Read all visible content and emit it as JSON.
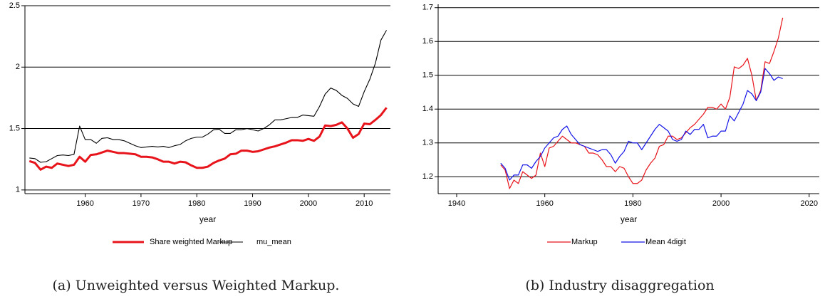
{
  "chart_data": [
    {
      "type": "line",
      "caption": "(a) Unweighted versus Weighted Markup.",
      "xlabel": "year",
      "x": [
        1950,
        1951,
        1952,
        1953,
        1954,
        1955,
        1956,
        1957,
        1958,
        1959,
        1960,
        1961,
        1962,
        1963,
        1964,
        1965,
        1966,
        1967,
        1968,
        1969,
        1970,
        1971,
        1972,
        1973,
        1974,
        1975,
        1976,
        1977,
        1978,
        1979,
        1980,
        1981,
        1982,
        1983,
        1984,
        1985,
        1986,
        1987,
        1988,
        1989,
        1990,
        1991,
        1992,
        1993,
        1994,
        1995,
        1996,
        1997,
        1998,
        1999,
        2000,
        2001,
        2002,
        2003,
        2004,
        2005,
        2006,
        2007,
        2008,
        2009,
        2010,
        2011,
        2012,
        2013,
        2014
      ],
      "series": [
        {
          "name": "Share weighted Markup",
          "color": "#e8141b",
          "values": [
            1.235,
            1.22,
            1.165,
            1.19,
            1.18,
            1.215,
            1.205,
            1.195,
            1.205,
            1.27,
            1.23,
            1.285,
            1.29,
            1.305,
            1.32,
            1.31,
            1.3,
            1.3,
            1.295,
            1.29,
            1.27,
            1.27,
            1.265,
            1.25,
            1.23,
            1.23,
            1.215,
            1.23,
            1.225,
            1.2,
            1.18,
            1.18,
            1.19,
            1.22,
            1.24,
            1.255,
            1.29,
            1.295,
            1.32,
            1.32,
            1.31,
            1.315,
            1.33,
            1.345,
            1.355,
            1.37,
            1.385,
            1.405,
            1.405,
            1.4,
            1.415,
            1.4,
            1.435,
            1.525,
            1.52,
            1.53,
            1.55,
            1.5,
            1.425,
            1.455,
            1.54,
            1.535,
            1.57,
            1.61,
            1.67
          ]
        },
        {
          "name": "mu_mean",
          "color": "#000000",
          "values": [
            1.26,
            1.255,
            1.225,
            1.23,
            1.255,
            1.28,
            1.285,
            1.28,
            1.29,
            1.52,
            1.41,
            1.41,
            1.38,
            1.42,
            1.425,
            1.41,
            1.41,
            1.4,
            1.38,
            1.36,
            1.345,
            1.35,
            1.355,
            1.35,
            1.355,
            1.345,
            1.36,
            1.37,
            1.4,
            1.42,
            1.43,
            1.43,
            1.455,
            1.49,
            1.495,
            1.46,
            1.46,
            1.49,
            1.49,
            1.5,
            1.49,
            1.48,
            1.5,
            1.53,
            1.57,
            1.57,
            1.58,
            1.59,
            1.59,
            1.61,
            1.605,
            1.6,
            1.68,
            1.78,
            1.83,
            1.81,
            1.77,
            1.745,
            1.7,
            1.68,
            1.8,
            1.9,
            2.03,
            2.22,
            2.3
          ]
        }
      ],
      "xlim": [
        1949.2,
        2014.7
      ],
      "ylim": [
        0.97,
        2.5
      ],
      "xticks": [
        1960,
        1970,
        1980,
        1990,
        2000,
        2010
      ],
      "yticks": [
        1,
        1.5,
        2,
        2.5
      ],
      "grid": true
    },
    {
      "type": "line",
      "caption": "(b) Industry disaggregation",
      "xlabel": "year",
      "x": [
        1950,
        1951,
        1952,
        1953,
        1954,
        1955,
        1956,
        1957,
        1958,
        1959,
        1960,
        1961,
        1962,
        1963,
        1964,
        1965,
        1966,
        1967,
        1968,
        1969,
        1970,
        1971,
        1972,
        1973,
        1974,
        1975,
        1976,
        1977,
        1978,
        1979,
        1980,
        1981,
        1982,
        1983,
        1984,
        1985,
        1986,
        1987,
        1988,
        1989,
        1990,
        1991,
        1992,
        1993,
        1994,
        1995,
        1996,
        1997,
        1998,
        1999,
        2000,
        2001,
        2002,
        2003,
        2004,
        2005,
        2006,
        2007,
        2008,
        2009,
        2010,
        2011,
        2012,
        2013,
        2014
      ],
      "series": [
        {
          "name": "Markup",
          "color": "#e8141b",
          "values": [
            1.235,
            1.22,
            1.165,
            1.19,
            1.18,
            1.215,
            1.205,
            1.195,
            1.205,
            1.27,
            1.23,
            1.285,
            1.29,
            1.305,
            1.32,
            1.31,
            1.3,
            1.3,
            1.295,
            1.29,
            1.27,
            1.27,
            1.265,
            1.25,
            1.23,
            1.23,
            1.215,
            1.23,
            1.225,
            1.2,
            1.18,
            1.18,
            1.19,
            1.22,
            1.24,
            1.255,
            1.29,
            1.295,
            1.32,
            1.32,
            1.31,
            1.315,
            1.33,
            1.345,
            1.355,
            1.37,
            1.385,
            1.405,
            1.405,
            1.4,
            1.415,
            1.4,
            1.435,
            1.525,
            1.52,
            1.53,
            1.55,
            1.5,
            1.425,
            1.455,
            1.54,
            1.535,
            1.57,
            1.61,
            1.67
          ]
        },
        {
          "name": "Mean 4digit",
          "color": "#1414e8",
          "values": [
            1.24,
            1.225,
            1.19,
            1.205,
            1.205,
            1.235,
            1.235,
            1.225,
            1.245,
            1.26,
            1.285,
            1.3,
            1.315,
            1.32,
            1.34,
            1.35,
            1.325,
            1.31,
            1.295,
            1.29,
            1.285,
            1.28,
            1.275,
            1.28,
            1.28,
            1.265,
            1.24,
            1.26,
            1.275,
            1.305,
            1.3,
            1.3,
            1.28,
            1.3,
            1.32,
            1.34,
            1.355,
            1.345,
            1.335,
            1.31,
            1.305,
            1.31,
            1.335,
            1.325,
            1.34,
            1.34,
            1.355,
            1.315,
            1.32,
            1.32,
            1.335,
            1.335,
            1.38,
            1.365,
            1.39,
            1.415,
            1.455,
            1.445,
            1.425,
            1.45,
            1.52,
            1.505,
            1.485,
            1.495,
            1.49
          ]
        }
      ],
      "xlim": [
        1935.8,
        2022.3
      ],
      "ylim": [
        1.15,
        1.71
      ],
      "xticks": [
        1940,
        1960,
        1980,
        2000,
        2020
      ],
      "yticks": [
        1.2,
        1.3,
        1.4,
        1.5,
        1.6,
        1.7
      ],
      "grid": true
    }
  ]
}
